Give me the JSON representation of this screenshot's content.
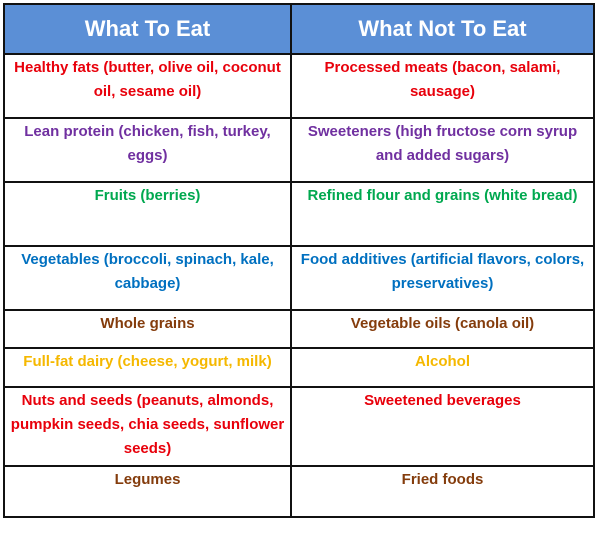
{
  "header": {
    "col1": "What To Eat",
    "col2": "What Not To Eat",
    "background": "#5b8fd6"
  },
  "rows": [
    {
      "eat": "Healthy fats (butter, olive oil, coconut oil, sesame oil)",
      "avoid": "Processed meats (bacon, salami, sausage)",
      "color": "#e8000b"
    },
    {
      "eat": "Lean protein (chicken, fish, turkey, eggs)",
      "avoid": "Sweeteners (high fructose corn syrup and added sugars)",
      "color": "#7030a0"
    },
    {
      "eat": "Fruits (berries)",
      "avoid": "Refined flour and grains (white bread)",
      "color": "#00a84f"
    },
    {
      "eat": "Vegetables (broccoli, spinach, kale, cabbage)",
      "avoid": "Food additives (artificial flavors, colors, preservatives)",
      "color": "#0070c0"
    },
    {
      "eat": "Whole grains",
      "avoid": "Vegetable oils (canola oil)",
      "color": "#843c0c"
    },
    {
      "eat": "Full-fat dairy (cheese, yogurt, milk)",
      "avoid": "Alcohol",
      "color": "#f5b800"
    },
    {
      "eat": "Nuts and seeds (peanuts, almonds, pumpkin seeds, chia seeds, sunflower seeds)",
      "avoid": "Sweetened beverages",
      "color": "#e8000b"
    },
    {
      "eat": "Legumes",
      "avoid": "Fried foods",
      "color": "#843c0c"
    }
  ]
}
